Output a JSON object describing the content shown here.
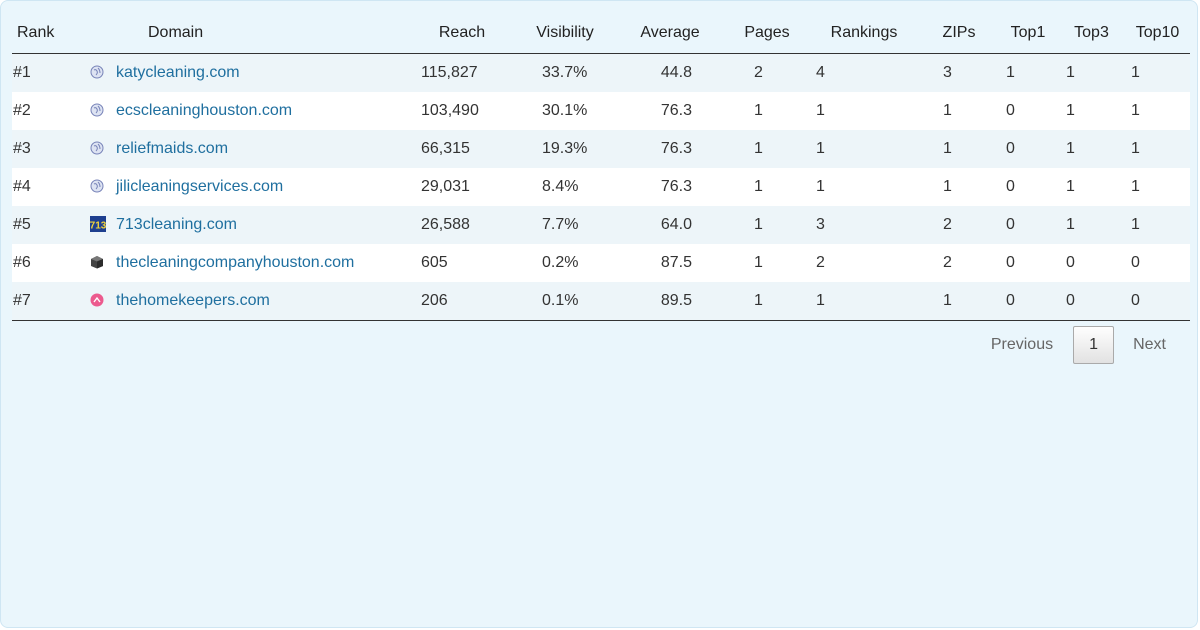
{
  "table": {
    "columns": [
      "Rank",
      "Domain",
      "Reach",
      "Visibility",
      "Average",
      "Pages",
      "Rankings",
      "ZIPs",
      "Top1",
      "Top3",
      "Top10"
    ],
    "rows": [
      {
        "rank": "#1",
        "domain": "katycleaning.com",
        "icon": "globe-icon",
        "reach": "115,827",
        "visibility": "33.7%",
        "average": "44.8",
        "pages": "2",
        "rankings": "4",
        "zips": "3",
        "top1": "1",
        "top3": "1",
        "top10": "1"
      },
      {
        "rank": "#2",
        "domain": "ecscleaninghouston.com",
        "icon": "globe-icon",
        "reach": "103,490",
        "visibility": "30.1%",
        "average": "76.3",
        "pages": "1",
        "rankings": "1",
        "zips": "1",
        "top1": "0",
        "top3": "1",
        "top10": "1"
      },
      {
        "rank": "#3",
        "domain": "reliefmaids.com",
        "icon": "globe-icon",
        "reach": "66,315",
        "visibility": "19.3%",
        "average": "76.3",
        "pages": "1",
        "rankings": "1",
        "zips": "1",
        "top1": "0",
        "top3": "1",
        "top10": "1"
      },
      {
        "rank": "#4",
        "domain": "jilicleaningservices.com",
        "icon": "globe-icon",
        "reach": "29,031",
        "visibility": "8.4%",
        "average": "76.3",
        "pages": "1",
        "rankings": "1",
        "zips": "1",
        "top1": "0",
        "top3": "1",
        "top10": "1"
      },
      {
        "rank": "#5",
        "domain": "713cleaning.com",
        "icon": "713-logo-icon",
        "reach": "26,588",
        "visibility": "7.7%",
        "average": "64.0",
        "pages": "1",
        "rankings": "3",
        "zips": "2",
        "top1": "0",
        "top3": "1",
        "top10": "1"
      },
      {
        "rank": "#6",
        "domain": "thecleaningcompanyhouston.com",
        "icon": "cube-icon",
        "reach": "605",
        "visibility": "0.2%",
        "average": "87.5",
        "pages": "1",
        "rankings": "2",
        "zips": "2",
        "top1": "0",
        "top3": "0",
        "top10": "0"
      },
      {
        "rank": "#7",
        "domain": "thehomekeepers.com",
        "icon": "pink-home-icon",
        "reach": "206",
        "visibility": "0.1%",
        "average": "89.5",
        "pages": "1",
        "rankings": "1",
        "zips": "1",
        "top1": "0",
        "top3": "0",
        "top10": "0"
      }
    ]
  },
  "pagination": {
    "previous_label": "Previous",
    "current_page": "1",
    "next_label": "Next"
  },
  "colors": {
    "background": "#eaf6fc",
    "odd_row": "#edf5f9",
    "even_row": "#ffffff",
    "link": "#1f6f9f"
  }
}
